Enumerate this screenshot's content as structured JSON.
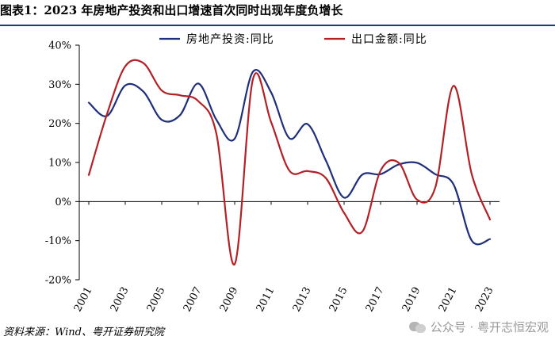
{
  "header": {
    "title": "图表1：2023 年房地产投资和出口增速首次同时出现年度负增长"
  },
  "footer": {
    "source": "资料来源：Wind、粤开证券研究院",
    "watermark": "公众号 · 粤开志恒宏观",
    "watermark_icon": "wechat-icon"
  },
  "colors": {
    "series1": "#1f2f7a",
    "series2": "#b32025",
    "axis": "#000000"
  },
  "chart_data": {
    "type": "line",
    "title": "",
    "xlabel": "",
    "ylabel": "",
    "xlim": [
      2001,
      2023
    ],
    "ylim": [
      -20,
      40
    ],
    "y_ticks": [
      -20,
      -10,
      0,
      10,
      20,
      30,
      40
    ],
    "y_tick_labels": [
      "-20%",
      "-10%",
      "0%",
      "10%",
      "20%",
      "30%",
      "40%"
    ],
    "x_tick_labels": [
      "2001",
      "2003",
      "2005",
      "2007",
      "2009",
      "2011",
      "2013",
      "2015",
      "2017",
      "2019",
      "2021",
      "2023"
    ],
    "x": [
      2001,
      2002,
      2003,
      2004,
      2005,
      2006,
      2007,
      2008,
      2009,
      2010,
      2011,
      2012,
      2013,
      2014,
      2015,
      2016,
      2017,
      2018,
      2019,
      2020,
      2021,
      2022,
      2023
    ],
    "legend_position": "top",
    "series": [
      {
        "name": "房地产投资:同比",
        "color": "#1f2f7a",
        "values": [
          25.3,
          21.9,
          29.7,
          28.1,
          20.9,
          22.1,
          30.2,
          20.9,
          16.1,
          33.2,
          27.9,
          16.2,
          19.8,
          10.5,
          1.0,
          6.9,
          7.0,
          9.5,
          9.9,
          7.0,
          4.4,
          -10.0,
          -9.6
        ]
      },
      {
        "name": "出口金额:同比",
        "color": "#b32025",
        "values": [
          6.8,
          22.4,
          34.6,
          35.4,
          28.4,
          27.2,
          25.7,
          17.3,
          -16.0,
          31.3,
          20.3,
          7.9,
          7.8,
          6.0,
          -2.9,
          -7.7,
          7.9,
          9.9,
          0.5,
          3.6,
          29.6,
          7.0,
          -4.6
        ]
      }
    ]
  }
}
